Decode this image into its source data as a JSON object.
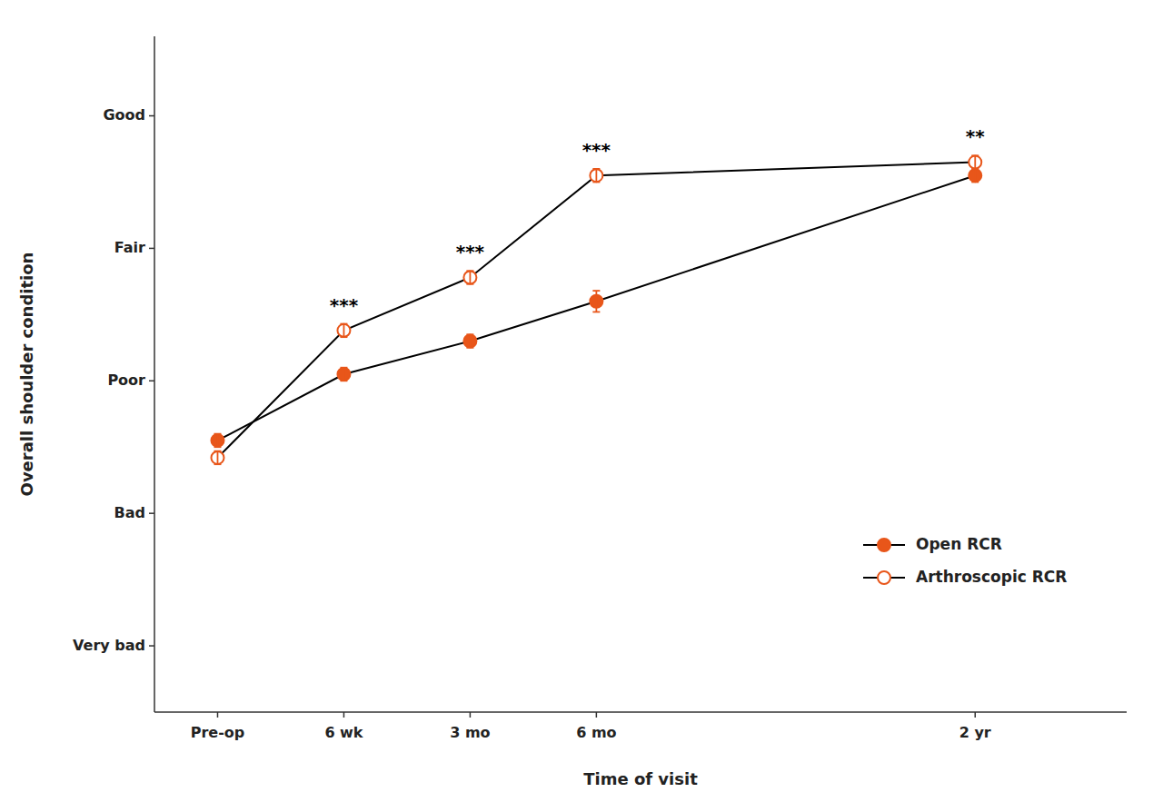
{
  "chart_data": {
    "type": "line",
    "x": [
      0,
      1,
      2,
      3,
      6
    ],
    "xlim": [
      -0.5,
      7.2
    ],
    "xticks": [
      {
        "value": 0,
        "label": "Pre-op"
      },
      {
        "value": 1,
        "label": "6 wk"
      },
      {
        "value": 2,
        "label": "3 mo"
      },
      {
        "value": 3,
        "label": "6 mo"
      },
      {
        "value": 6,
        "label": "2 yr"
      }
    ],
    "ylim": [
      0.5,
      5.6
    ],
    "yticks": [
      {
        "value": 1,
        "label": "Very bad"
      },
      {
        "value": 2,
        "label": "Bad"
      },
      {
        "value": 3,
        "label": "Poor"
      },
      {
        "value": 4,
        "label": "Fair"
      },
      {
        "value": 5,
        "label": "Good"
      }
    ],
    "x_label": "Time of visit",
    "y_label": "Overall shoulder condition",
    "grid": false,
    "legend": "lower right",
    "series": [
      {
        "name": "Open RCR",
        "color": "#E8561A",
        "marker": "circle",
        "values": [
          2.55,
          3.05,
          3.3,
          3.6,
          4.55
        ],
        "errors": [
          0.05,
          0.05,
          0.05,
          0.08,
          0.05
        ]
      },
      {
        "name": "Arthroscopic RCR",
        "color": "#E8561A",
        "marker": "open-circle",
        "values": [
          2.42,
          3.38,
          3.78,
          4.55,
          4.65
        ],
        "errors": [
          0.05,
          0.05,
          0.05,
          0.05,
          0.05
        ]
      }
    ],
    "annotations": [
      {
        "x": 1,
        "text": "***"
      },
      {
        "x": 2,
        "text": "***"
      },
      {
        "x": 3,
        "text": "***"
      },
      {
        "x": 6,
        "text": "**"
      }
    ]
  }
}
